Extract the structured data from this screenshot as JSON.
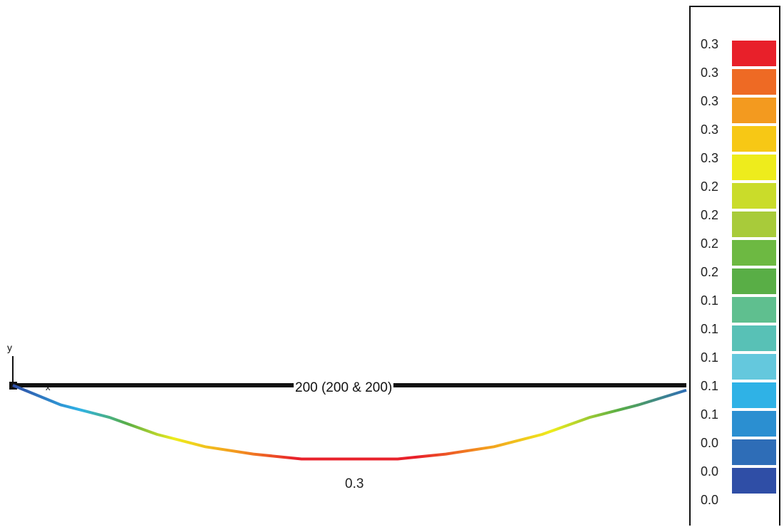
{
  "diagram": {
    "member_label": "200 (200 & 200)",
    "max_value_label": "0.3",
    "axis_y": "y",
    "axis_x": "x"
  },
  "deflection_profile": [
    0.0,
    0.08,
    0.13,
    0.2,
    0.25,
    0.28,
    0.3,
    0.3,
    0.3,
    0.28,
    0.25,
    0.2,
    0.13,
    0.08,
    0.02
  ],
  "legend": {
    "labels": [
      "0.3",
      "0.3",
      "0.3",
      "0.3",
      "0.3",
      "0.2",
      "0.2",
      "0.2",
      "0.2",
      "0.1",
      "0.1",
      "0.1",
      "0.1",
      "0.1",
      "0.0",
      "0.0",
      "0.0"
    ],
    "colors": [
      "#e8202a",
      "#ee6a24",
      "#f39a1f",
      "#f7c815",
      "#eeec1c",
      "#cadc2a",
      "#a8cb3a",
      "#6db942",
      "#59ae46",
      "#5fbf8f",
      "#58c1b6",
      "#64c8dd",
      "#2fb2e6",
      "#2b8fd1",
      "#2e6db7",
      "#2f4ea6"
    ]
  }
}
